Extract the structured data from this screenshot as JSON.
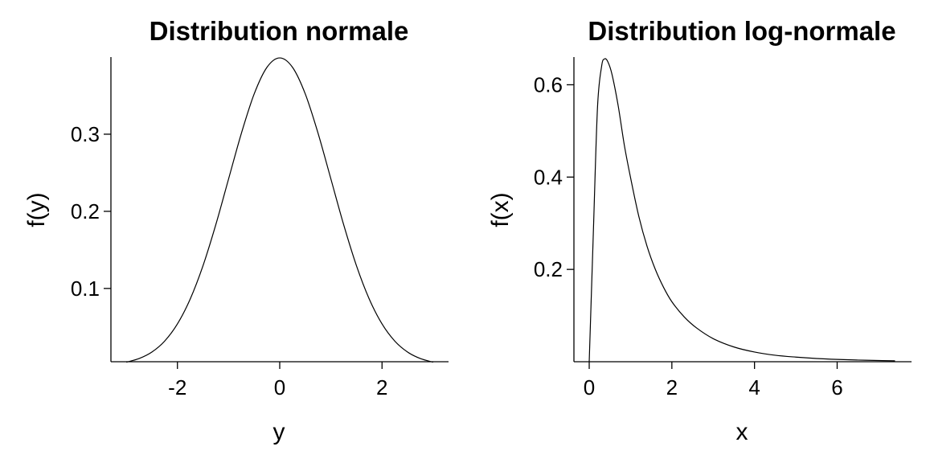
{
  "chart_data": [
    {
      "type": "line",
      "title": "Distribution normale",
      "xlabel": "y",
      "ylabel": "f(y)",
      "xlim": [
        -3.3,
        3.3
      ],
      "ylim": [
        0.005,
        0.4
      ],
      "xticks": [
        -2,
        0,
        2
      ],
      "xtick_labels": [
        "-2",
        "0",
        "2"
      ],
      "yticks": [
        0.1,
        0.2,
        0.3
      ],
      "ytick_labels": [
        "0.1",
        "0.2",
        "0.3"
      ],
      "grid": false,
      "series": [
        {
          "x": [
            -3,
            -2.75,
            -2.5,
            -2.25,
            -2,
            -1.75,
            -1.5,
            -1.25,
            -1,
            -0.75,
            -0.5,
            -0.25,
            0,
            0.25,
            0.5,
            0.75,
            1,
            1.25,
            1.5,
            1.75,
            2,
            2.25,
            2.5,
            2.75,
            3
          ],
          "values": [
            0.0044,
            0.0091,
            0.0175,
            0.0317,
            0.054,
            0.0863,
            0.1295,
            0.1826,
            0.242,
            0.3011,
            0.3521,
            0.3867,
            0.3989,
            0.3867,
            0.3521,
            0.3011,
            0.242,
            0.1826,
            0.1295,
            0.0863,
            0.054,
            0.0317,
            0.0175,
            0.0091,
            0.0044
          ]
        }
      ]
    },
    {
      "type": "line",
      "title": "Distribution log-normale",
      "xlabel": "x",
      "ylabel": "f(x)",
      "xlim": [
        -0.37,
        7.8
      ],
      "ylim": [
        0,
        0.66
      ],
      "xticks": [
        0,
        2,
        4,
        6
      ],
      "xtick_labels": [
        "0",
        "2",
        "4",
        "6"
      ],
      "yticks": [
        0.2,
        0.4,
        0.6
      ],
      "ytick_labels": [
        "0.2",
        "0.4",
        "0.6"
      ],
      "grid": false,
      "series": [
        {
          "x": [
            0,
            0.1,
            0.2,
            0.3,
            0.37,
            0.45,
            0.55,
            0.7,
            0.85,
            1,
            1.2,
            1.4,
            1.6,
            1.8,
            2,
            2.3,
            2.6,
            3,
            3.5,
            4,
            4.5,
            5,
            5.5,
            6,
            6.5,
            7,
            7.4
          ],
          "values": [
            0,
            0.28,
            0.55,
            0.64,
            0.656,
            0.65,
            0.623,
            0.555,
            0.469,
            0.399,
            0.315,
            0.25,
            0.2,
            0.161,
            0.13,
            0.097,
            0.073,
            0.05,
            0.032,
            0.021,
            0.014,
            0.01,
            0.007,
            0.005,
            0.0036,
            0.0026,
            0.002
          ]
        }
      ]
    }
  ]
}
